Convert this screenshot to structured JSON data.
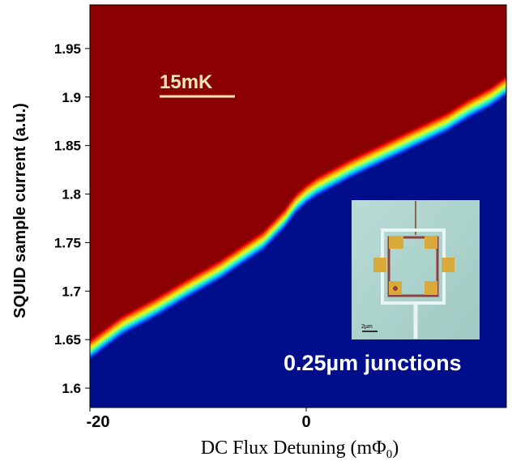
{
  "chart_data": {
    "type": "heatmap",
    "xlabel": "DC Flux Detuning (mΦ",
    "xlabel_sub": "0",
    "xlabel_close": ")",
    "ylabel": "SQUID sample current (a.u.)",
    "xlim": [
      -20,
      18.5
    ],
    "ylim": [
      1.58,
      1.995
    ],
    "x_ticks": [
      {
        "value": -20,
        "label": "-20"
      },
      {
        "value": 0,
        "label": "0"
      }
    ],
    "y_ticks": [
      {
        "value": 1.6,
        "label": "1.6"
      },
      {
        "value": 1.65,
        "label": "1.65"
      },
      {
        "value": 1.7,
        "label": "1.7"
      },
      {
        "value": 1.75,
        "label": "1.75"
      },
      {
        "value": 1.8,
        "label": "1.8"
      },
      {
        "value": 1.85,
        "label": "1.85"
      },
      {
        "value": 1.9,
        "label": "1.9"
      },
      {
        "value": 1.95,
        "label": "1.95"
      }
    ],
    "colors": {
      "above": "#8b0000",
      "below": "#000e8c"
    },
    "colormap": [
      "#000e8c",
      "#0040ff",
      "#00c8ff",
      "#40ffc0",
      "#c8ff40",
      "#ffd000",
      "#ff6000",
      "#e00000",
      "#8b0000"
    ],
    "transition_curve": {
      "x": [
        -20,
        -17,
        -14,
        -11,
        -8,
        -6,
        -4,
        -2,
        -1,
        0,
        1,
        2,
        4,
        7,
        10,
        13,
        15,
        17,
        18.5
      ],
      "y": [
        1.64,
        1.665,
        1.683,
        1.703,
        1.722,
        1.737,
        1.752,
        1.775,
        1.79,
        1.8,
        1.808,
        1.814,
        1.826,
        1.842,
        1.858,
        1.874,
        1.888,
        1.9,
        1.912
      ]
    },
    "annotations": {
      "temperature": "15mK",
      "junctions": "0.25µm junctions",
      "inset_scale": "2µm"
    }
  }
}
